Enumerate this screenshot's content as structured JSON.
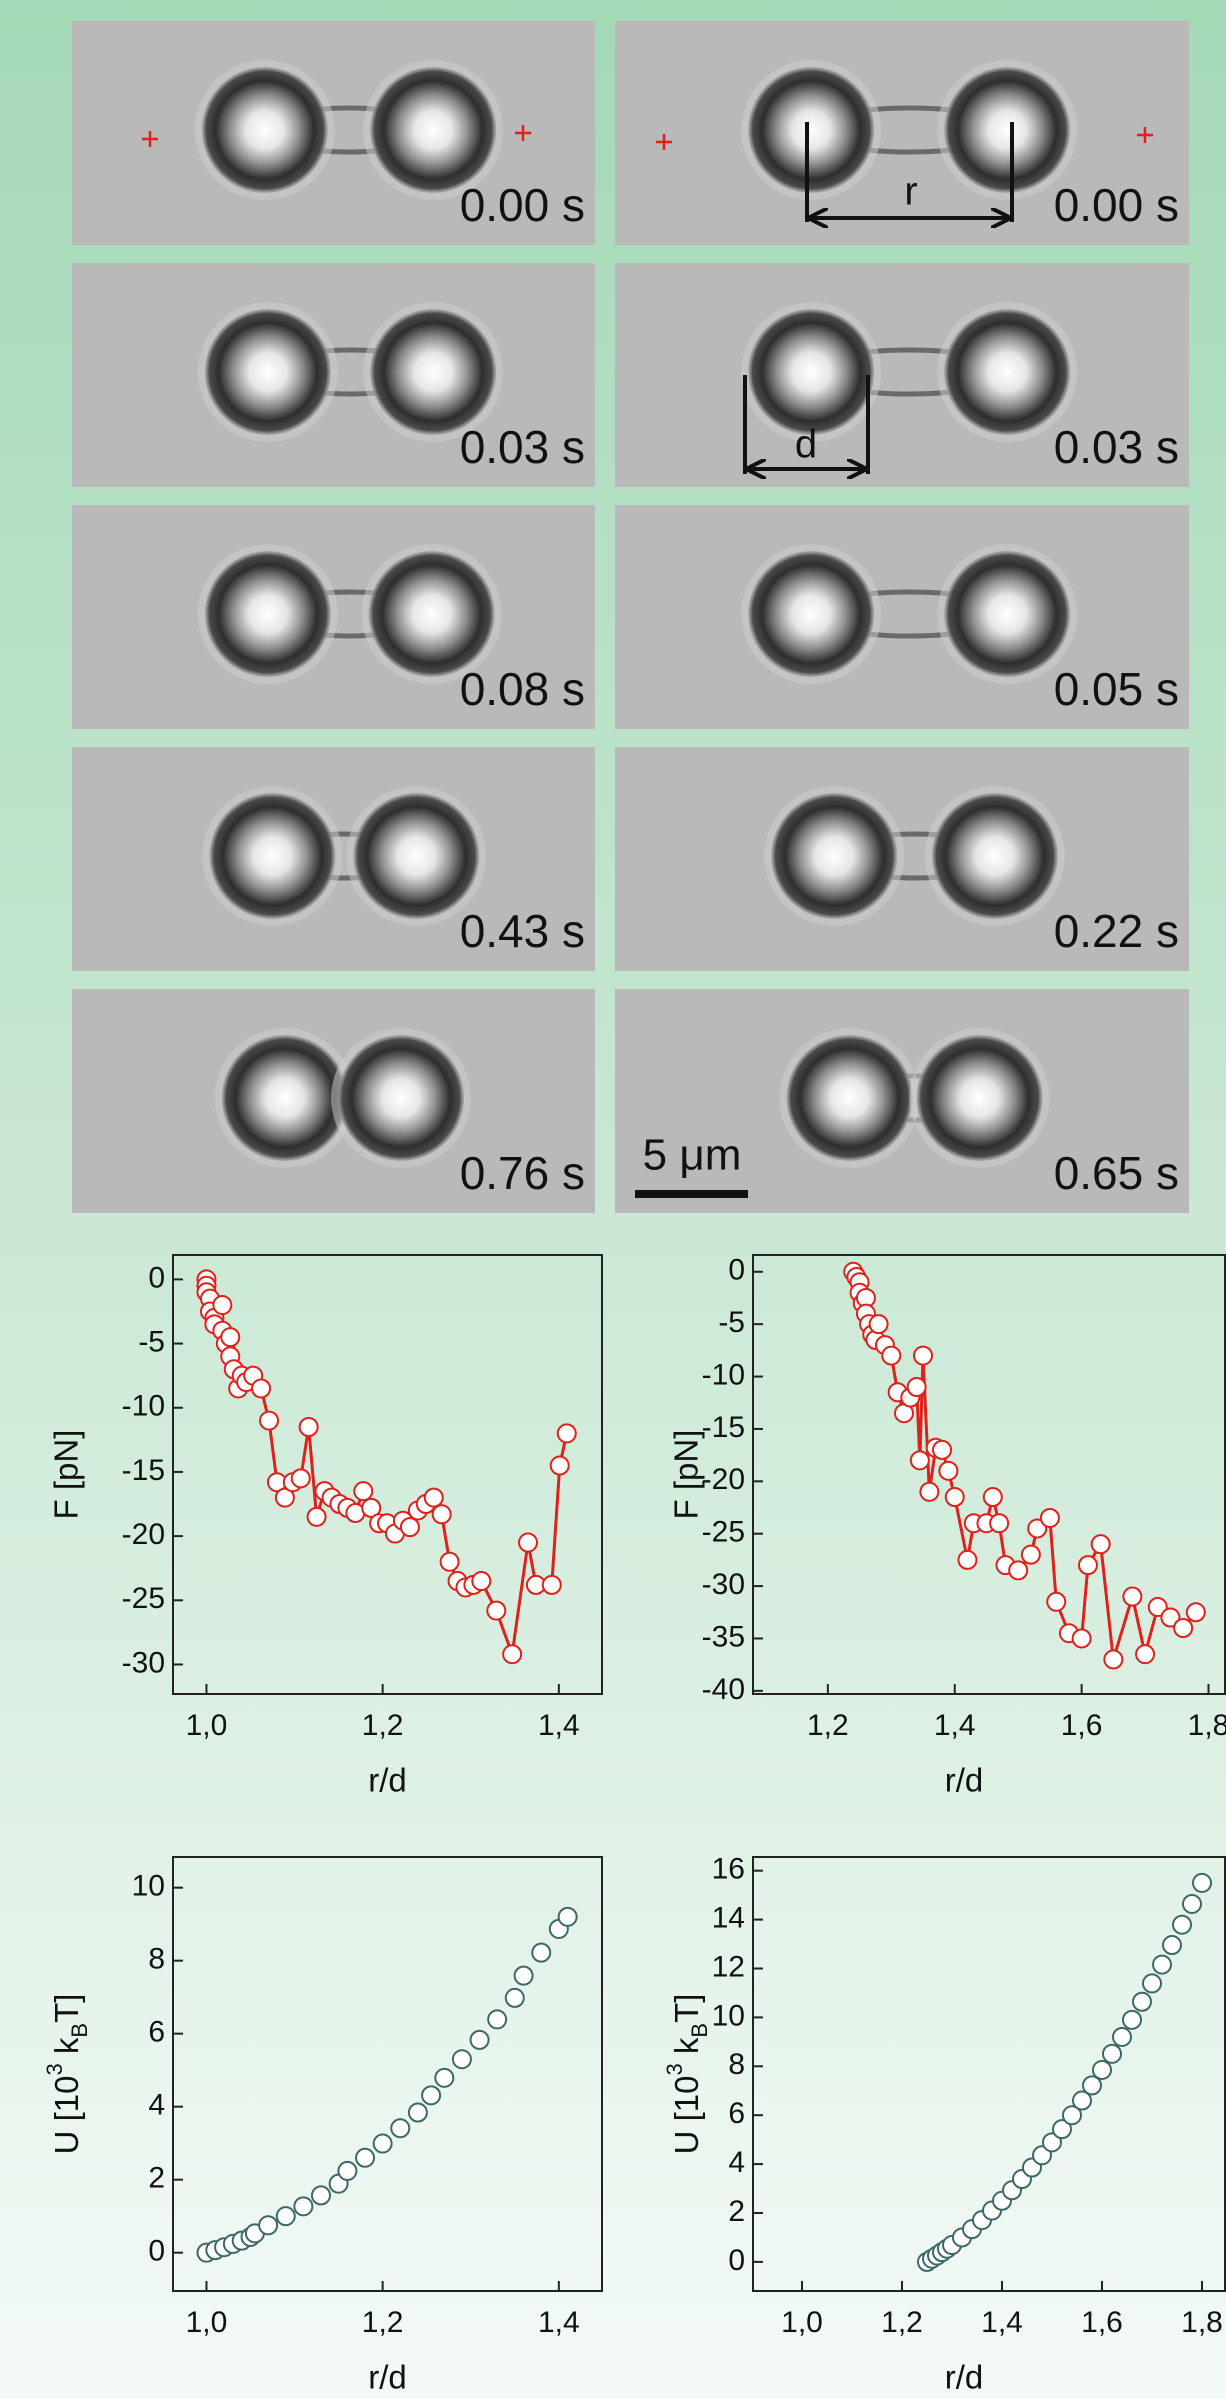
{
  "panels": {
    "left": [
      {
        "time": "0.00 s"
      },
      {
        "time": "0.03 s"
      },
      {
        "time": "0.08 s"
      },
      {
        "time": "0.43 s"
      },
      {
        "time": "0.76 s"
      }
    ],
    "right": [
      {
        "time": "0.00 s"
      },
      {
        "time": "0.03 s"
      },
      {
        "time": "0.05 s"
      },
      {
        "time": "0.22 s"
      },
      {
        "time": "0.65 s"
      }
    ]
  },
  "annotations": {
    "r": "r",
    "d": "d",
    "scale_bar": "5 μm"
  },
  "chart_data": [
    {
      "type": "line",
      "color": "#e0201b",
      "xlabel": "r/d",
      "ylabel": "F [pN]",
      "xlim": [
        0.962,
        1.449
      ],
      "ylim": [
        -32.3,
        1.9
      ],
      "xticks": [
        {
          "value": 1.0,
          "label": "1,0"
        },
        {
          "value": 1.2,
          "label": "1,2"
        },
        {
          "value": 1.4,
          "label": "1,4"
        }
      ],
      "yticks": [
        0,
        -5,
        -10,
        -15,
        -20,
        -25,
        -30
      ],
      "x": [
        1.0,
        1.0,
        1.0,
        1.004,
        1.004,
        1.009,
        1.009,
        1.018,
        1.018,
        1.022,
        1.027,
        1.027,
        1.031,
        1.036,
        1.04,
        1.045,
        1.053,
        1.062,
        1.071,
        1.08,
        1.089,
        1.098,
        1.107,
        1.116,
        1.125,
        1.134,
        1.142,
        1.151,
        1.16,
        1.169,
        1.178,
        1.187,
        1.196,
        1.205,
        1.214,
        1.223,
        1.231,
        1.24,
        1.249,
        1.258,
        1.267,
        1.276,
        1.285,
        1.294,
        1.303,
        1.312,
        1.329,
        1.347,
        1.365,
        1.374,
        1.392,
        1.401,
        1.409
      ],
      "values": [
        0,
        -0.5,
        -1,
        -1.5,
        -2.5,
        -3,
        -3.5,
        -2,
        -4,
        -5,
        -4.5,
        -6,
        -7,
        -8.5,
        -7.5,
        -8,
        -7.5,
        -8.5,
        -11,
        -15.8,
        -17,
        -15.8,
        -15.5,
        -11.5,
        -18.5,
        -16.5,
        -17,
        -17.5,
        -17.8,
        -18.2,
        -16.5,
        -17.8,
        -19,
        -19,
        -19.8,
        -18.8,
        -19.3,
        -18,
        -17.5,
        -17,
        -18.3,
        -22,
        -23.5,
        -24,
        -23.8,
        -23.5,
        -25.8,
        -29.2,
        -20.5,
        -23.8,
        -23.8,
        -14.5,
        -12
      ]
    },
    {
      "type": "line",
      "color": "#e0201b",
      "xlabel": "r/d",
      "ylabel": "F [pN]",
      "xlim": [
        1.082,
        1.826
      ],
      "ylim": [
        -40.3,
        1.6
      ],
      "xticks": [
        {
          "value": 1.2,
          "label": "1,2"
        },
        {
          "value": 1.4,
          "label": "1,4"
        },
        {
          "value": 1.6,
          "label": "1,6"
        },
        {
          "value": 1.8,
          "label": "1,8"
        }
      ],
      "yticks": [
        0,
        -5,
        -10,
        -15,
        -20,
        -25,
        -30,
        -35,
        -40
      ],
      "x": [
        1.24,
        1.245,
        1.25,
        1.25,
        1.255,
        1.26,
        1.26,
        1.265,
        1.27,
        1.275,
        1.28,
        1.29,
        1.3,
        1.31,
        1.32,
        1.33,
        1.34,
        1.345,
        1.35,
        1.36,
        1.37,
        1.38,
        1.39,
        1.4,
        1.42,
        1.43,
        1.45,
        1.46,
        1.47,
        1.48,
        1.5,
        1.52,
        1.53,
        1.55,
        1.56,
        1.58,
        1.6,
        1.61,
        1.63,
        1.65,
        1.68,
        1.7,
        1.72,
        1.74,
        1.76,
        1.78
      ],
      "values": [
        0,
        -0.5,
        -1,
        -2,
        -3,
        -2.5,
        -4,
        -5,
        -6,
        -6.5,
        -5,
        -7,
        -8,
        -11.5,
        -13.5,
        -12,
        -11,
        -18,
        -8,
        -21,
        -16.8,
        -17,
        -19,
        -21.5,
        -27.5,
        -24,
        -24,
        -21.5,
        -24,
        -28,
        -28.5,
        -27,
        -24.5,
        -23.5,
        -31.5,
        -34.5,
        -35,
        -28,
        -26,
        -37,
        -31,
        -36.5,
        -32,
        -33,
        -34,
        -32.5
      ]
    },
    {
      "type": "scatter",
      "color": "#3d6868",
      "xlabel": "r/d",
      "ylabel": [
        "U [10",
        "3",
        " k",
        "B",
        "T]"
      ],
      "xlim": [
        0.962,
        1.449
      ],
      "ylim": [
        -1.05,
        10.84
      ],
      "xticks": [
        {
          "value": 1.0,
          "label": "1,0"
        },
        {
          "value": 1.2,
          "label": "1,2"
        },
        {
          "value": 1.4,
          "label": "1,4"
        }
      ],
      "yticks": [
        0,
        2,
        4,
        6,
        8,
        10
      ],
      "x": [
        1.0,
        1.01,
        1.02,
        1.03,
        1.04,
        1.05,
        1.055,
        1.07,
        1.09,
        1.11,
        1.13,
        1.15,
        1.16,
        1.18,
        1.2,
        1.22,
        1.24,
        1.255,
        1.27,
        1.29,
        1.31,
        1.33,
        1.35,
        1.36,
        1.38,
        1.4,
        1.41
      ],
      "values": [
        0,
        0.07,
        0.15,
        0.24,
        0.33,
        0.43,
        0.53,
        0.75,
        1.0,
        1.27,
        1.57,
        1.89,
        2.24,
        2.6,
        2.99,
        3.41,
        3.84,
        4.31,
        4.79,
        5.3,
        5.83,
        6.39,
        6.98,
        7.59,
        8.22,
        8.87,
        9.2
      ]
    },
    {
      "type": "scatter",
      "color": "#3d6868",
      "xlabel": "r/d",
      "ylabel": [
        "U [10",
        "3",
        " k",
        "B",
        "T]"
      ],
      "xlim": [
        0.902,
        1.846
      ],
      "ylim": [
        -1.19,
        16.56
      ],
      "xticks": [
        {
          "value": 1.0,
          "label": "1,0"
        },
        {
          "value": 1.2,
          "label": "1,2"
        },
        {
          "value": 1.4,
          "label": "1,4"
        },
        {
          "value": 1.6,
          "label": "1,6"
        },
        {
          "value": 1.8,
          "label": "1,8"
        }
      ],
      "yticks": [
        0,
        2,
        4,
        6,
        8,
        10,
        12,
        14,
        16
      ],
      "x": [
        1.25,
        1.26,
        1.27,
        1.28,
        1.29,
        1.3,
        1.32,
        1.34,
        1.36,
        1.38,
        1.4,
        1.42,
        1.44,
        1.46,
        1.48,
        1.5,
        1.52,
        1.54,
        1.56,
        1.58,
        1.6,
        1.62,
        1.64,
        1.66,
        1.68,
        1.7,
        1.72,
        1.74,
        1.76,
        1.78,
        1.8
      ],
      "values": [
        0,
        0.13,
        0.26,
        0.4,
        0.54,
        0.69,
        1.0,
        1.34,
        1.71,
        2.1,
        2.5,
        2.93,
        3.39,
        3.86,
        4.36,
        4.89,
        5.43,
        6.0,
        6.6,
        7.22,
        7.85,
        8.51,
        9.2,
        9.9,
        10.64,
        11.39,
        12.16,
        12.96,
        13.79,
        14.64,
        15.5
      ]
    }
  ]
}
